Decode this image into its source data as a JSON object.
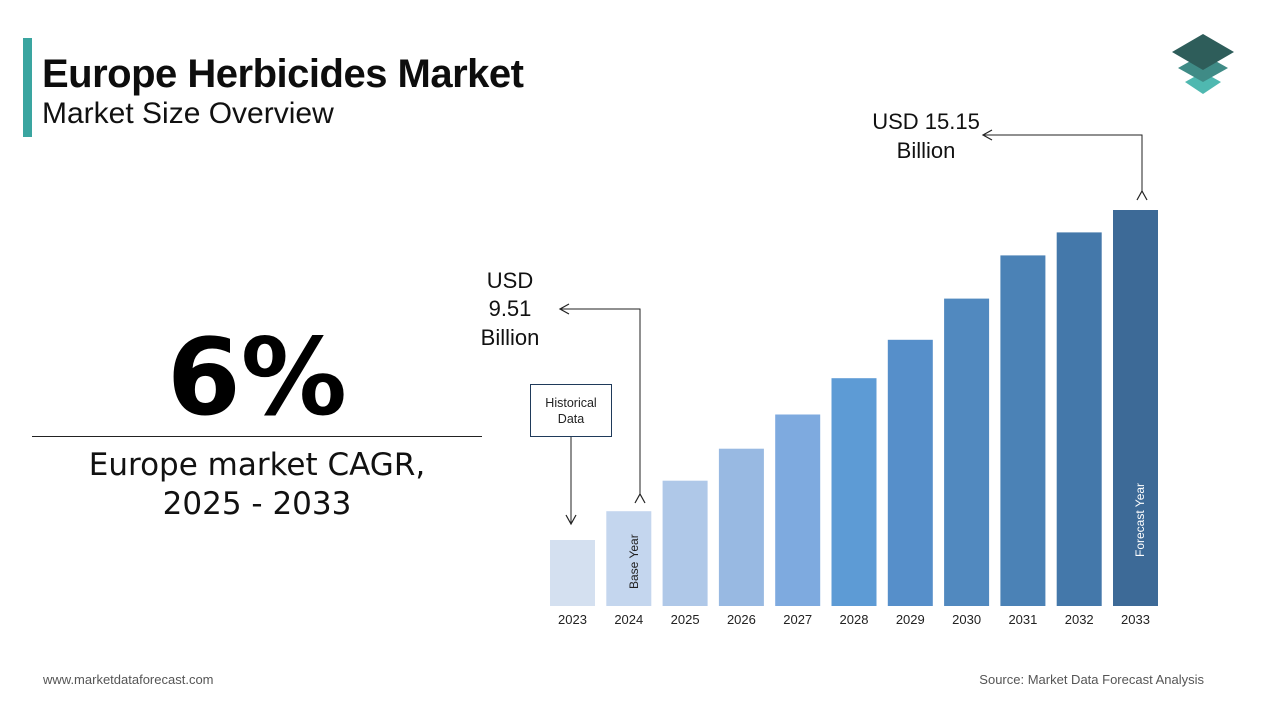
{
  "header": {
    "title": "Europe Herbicides Market",
    "subtitle": "Market Size Overview"
  },
  "colors": {
    "accent": "#3aa5a0",
    "logo_top": "#2e5d5a",
    "logo_mid": "#3f8b86",
    "logo_bottom": "#4fb8b0",
    "bars": [
      "#d4e0f0",
      "#c4d6ee",
      "#afc8e8",
      "#98b9e2",
      "#7eaadf",
      "#5d9bd5",
      "#568fca",
      "#5189bf",
      "#4b82b6",
      "#4478aa",
      "#3d6a97"
    ],
    "annotation": "#1f3a5a"
  },
  "cagr": {
    "value": "6%",
    "label_line1": "Europe market CAGR,",
    "label_line2": "2025 - 2033"
  },
  "annotations": {
    "base_value_lines": [
      "USD",
      "9.51",
      "Billion"
    ],
    "forecast_value_lines": [
      "USD 15.15",
      "Billion"
    ],
    "historical_box": "Historical Data",
    "base_year_label": "Base Year",
    "forecast_year_label": "Forecast Year"
  },
  "chart_data": {
    "type": "bar",
    "categories": [
      "2023",
      "2024",
      "2025",
      "2026",
      "2027",
      "2028",
      "2029",
      "2030",
      "2031",
      "2032",
      "2033"
    ],
    "values": [
      8.97,
      9.51,
      10.08,
      10.68,
      11.32,
      12.0,
      12.72,
      13.49,
      14.3,
      14.73,
      15.15
    ],
    "unit": "USD Billion",
    "highlighted": {
      "2024": "Base Year",
      "2033": "Forecast Year"
    }
  },
  "footer": {
    "website": "www.marketdataforecast.com",
    "source": "Source: Market Data Forecast Analysis"
  }
}
